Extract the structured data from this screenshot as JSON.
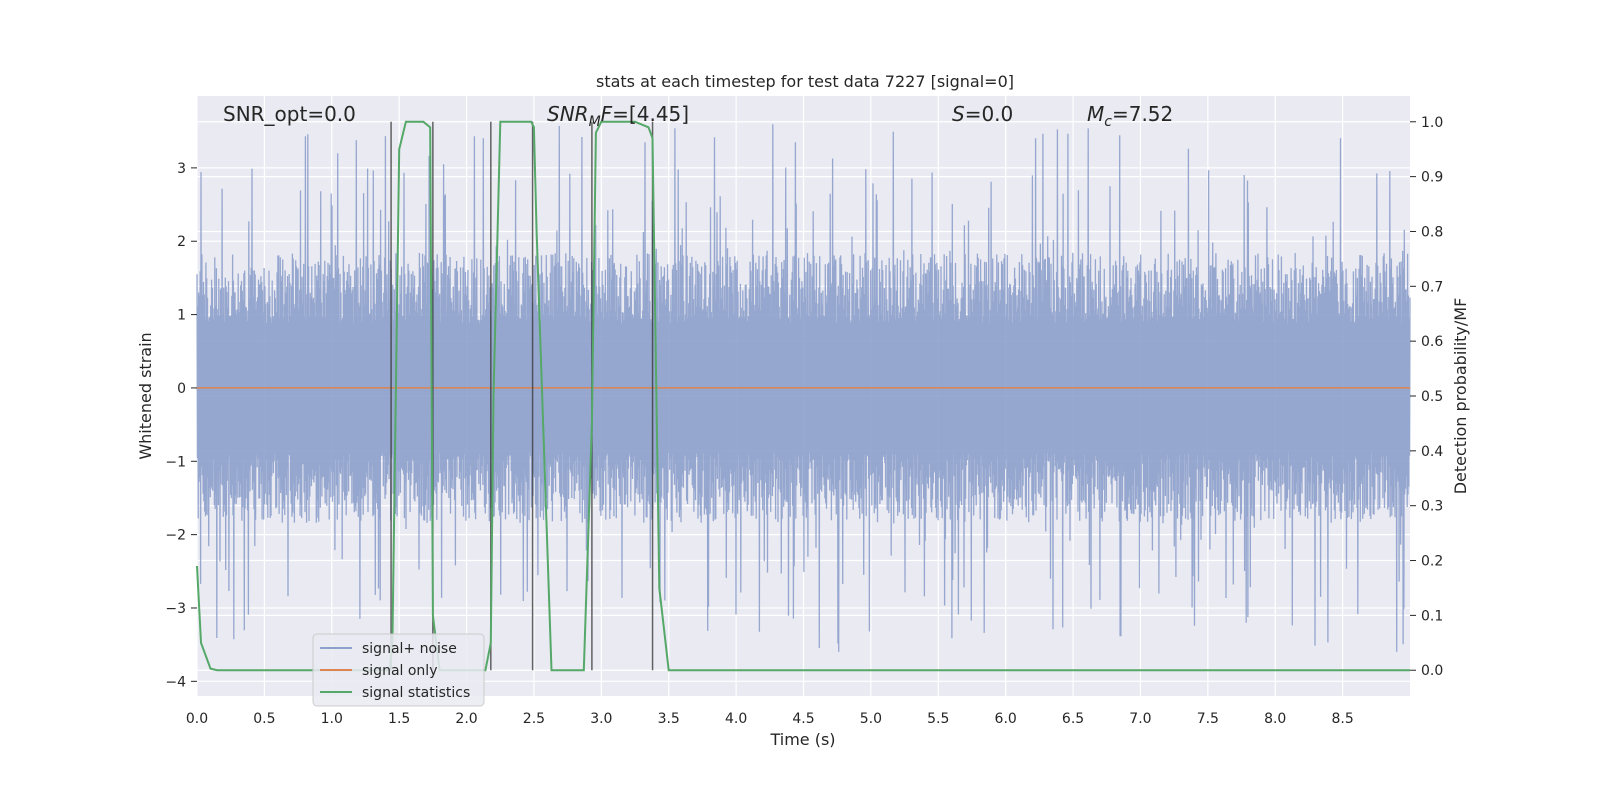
{
  "chart_data": {
    "type": "line",
    "title": "stats at each timestep for test data 7227 [signal=0]",
    "xlabel": "Time (s)",
    "ylabel_left": "Whitened strain",
    "ylabel_right": "Detection probability/MF",
    "xlim": [
      0.0,
      9.0
    ],
    "ylim_left": [
      -4.2,
      3.98
    ],
    "ylim_right": [
      -0.047,
      1.047
    ],
    "x_ticks": [
      "0.0",
      "0.5",
      "1.0",
      "1.5",
      "2.0",
      "2.5",
      "3.0",
      "3.5",
      "4.0",
      "4.5",
      "5.0",
      "5.5",
      "6.0",
      "6.5",
      "7.0",
      "7.5",
      "8.0",
      "8.5"
    ],
    "y_ticks_left": [
      "3",
      "2",
      "1",
      "0",
      "−1",
      "−2",
      "−3",
      "−4"
    ],
    "y_ticks_right": [
      "1.0",
      "0.9",
      "0.8",
      "0.7",
      "0.6",
      "0.5",
      "0.4",
      "0.3",
      "0.2",
      "0.1",
      "0.0"
    ],
    "grid": true,
    "legend_position": "lower-left",
    "annotations": {
      "snr_opt": "SNR_opt=0.0",
      "snr_mf_main": "SNR",
      "snr_mf_sub": "M",
      "snr_mf_mid": "F",
      "snr_mf_value": "=[4.45]",
      "s_main": "S",
      "s_value": "=0.0",
      "mc_main": "M",
      "mc_sub": "c",
      "mc_value": "=7.52"
    },
    "series": [
      {
        "name": "signal+ noise",
        "color": "#8da0cb",
        "style": "dense noise, amplitude ~ ±1.6 with spikes up to ±3.5",
        "envelope": {
          "typical": 1.6,
          "max": 3.6,
          "min": -4.0
        }
      },
      {
        "name": "signal only",
        "color": "#dd8452",
        "x": [
          0.0,
          9.0
        ],
        "y": [
          0.0,
          0.0
        ]
      },
      {
        "name": "signal statistics",
        "color": "#55a868",
        "axis": "right",
        "x": [
          0.0,
          0.03,
          0.1,
          0.15,
          1.43,
          1.45,
          1.5,
          1.55,
          1.68,
          1.73,
          1.75,
          1.8,
          2.14,
          2.18,
          2.2,
          2.25,
          2.48,
          2.5,
          2.52,
          2.63,
          2.7,
          2.87,
          2.93,
          2.96,
          3.0,
          3.25,
          3.35,
          3.38,
          3.43,
          3.5,
          9.0
        ],
        "y": [
          0.19,
          0.05,
          0.003,
          0.0,
          0.0,
          0.05,
          0.95,
          1.0,
          1.0,
          0.99,
          0.1,
          0.0,
          0.0,
          0.05,
          0.5,
          1.0,
          1.0,
          0.99,
          0.8,
          0.0,
          0.0,
          0.0,
          0.45,
          0.98,
          1.0,
          1.0,
          0.99,
          0.97,
          0.15,
          0.0,
          0.0
        ]
      }
    ],
    "vertical_markers": {
      "color": "#333333",
      "x": [
        1.44,
        1.75,
        2.18,
        2.49,
        2.93,
        3.38
      ]
    },
    "legend": [
      "signal+ noise",
      "signal only",
      "signal statistics"
    ]
  }
}
